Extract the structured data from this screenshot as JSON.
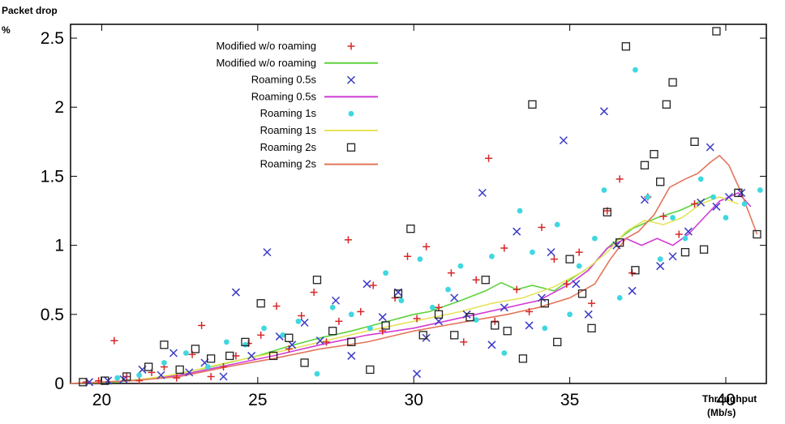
{
  "chart_data": {
    "type": "scatter",
    "title": "",
    "ylabel_line1": "Packet drop",
    "ylabel_line2": "%",
    "xlabel_line1": "Throughput",
    "xlabel_line2": "(Mb/s)",
    "xlim": [
      19,
      41.3
    ],
    "ylim": [
      0,
      2.6
    ],
    "x_ticks": [
      20,
      25,
      30,
      35,
      40
    ],
    "y_ticks": [
      0,
      0.5,
      1,
      1.5,
      2,
      2.5
    ],
    "x_tick_labels": [
      "20",
      "25",
      "30",
      "35",
      "40"
    ],
    "y_tick_labels": [
      "0",
      "0.5",
      "1",
      "1.5",
      "2",
      "2.5"
    ],
    "grid": false,
    "legend_position": "top-left",
    "series": [
      {
        "name": "Modified w/o roaming",
        "kind": "points",
        "marker": "plus",
        "color": "#d62728",
        "points": [
          [
            19.5,
            0.01
          ],
          [
            19.9,
            0.02
          ],
          [
            20.4,
            0.31
          ],
          [
            20.8,
            0.05
          ],
          [
            21.2,
            0.02
          ],
          [
            21.6,
            0.08
          ],
          [
            22.0,
            0.12
          ],
          [
            22.4,
            0.04
          ],
          [
            22.9,
            0.21
          ],
          [
            23.2,
            0.42
          ],
          [
            23.5,
            0.05
          ],
          [
            23.9,
            0.12
          ],
          [
            24.3,
            0.2
          ],
          [
            24.7,
            0.29
          ],
          [
            25.1,
            0.35
          ],
          [
            25.6,
            0.56
          ],
          [
            26.0,
            0.25
          ],
          [
            26.4,
            0.49
          ],
          [
            26.8,
            0.66
          ],
          [
            27.2,
            0.3
          ],
          [
            27.6,
            0.45
          ],
          [
            27.9,
            1.04
          ],
          [
            28.3,
            0.52
          ],
          [
            28.7,
            0.71
          ],
          [
            29.0,
            0.38
          ],
          [
            29.4,
            0.62
          ],
          [
            29.8,
            0.92
          ],
          [
            30.1,
            0.47
          ],
          [
            30.4,
            0.99
          ],
          [
            30.8,
            0.55
          ],
          [
            31.2,
            0.8
          ],
          [
            31.6,
            0.3
          ],
          [
            32.0,
            0.75
          ],
          [
            32.4,
            1.63
          ],
          [
            32.6,
            0.45
          ],
          [
            32.9,
            0.98
          ],
          [
            33.3,
            0.68
          ],
          [
            33.7,
            0.52
          ],
          [
            34.1,
            1.13
          ],
          [
            34.5,
            0.9
          ],
          [
            34.9,
            0.72
          ],
          [
            35.3,
            0.95
          ],
          [
            35.7,
            0.58
          ],
          [
            36.2,
            1.25
          ],
          [
            36.6,
            1.48
          ],
          [
            37.0,
            0.8
          ],
          [
            37.5,
            1.35
          ],
          [
            38.0,
            1.21
          ],
          [
            38.5,
            1.08
          ],
          [
            39.0,
            1.3
          ]
        ]
      },
      {
        "name": "Modified w/o roaming",
        "kind": "line",
        "color": "#5ed33b",
        "points": [
          [
            19.0,
            0.0
          ],
          [
            20.5,
            0.01
          ],
          [
            22.0,
            0.05
          ],
          [
            23.5,
            0.12
          ],
          [
            25.0,
            0.2
          ],
          [
            26.0,
            0.27
          ],
          [
            27.0,
            0.33
          ],
          [
            28.0,
            0.38
          ],
          [
            29.0,
            0.44
          ],
          [
            30.0,
            0.5
          ],
          [
            30.5,
            0.52
          ],
          [
            31.5,
            0.6
          ],
          [
            32.3,
            0.67
          ],
          [
            32.8,
            0.73
          ],
          [
            33.3,
            0.68
          ],
          [
            33.8,
            0.71
          ],
          [
            34.5,
            0.67
          ],
          [
            35.2,
            0.78
          ],
          [
            35.7,
            0.85
          ],
          [
            36.3,
            1.0
          ],
          [
            37.0,
            1.12
          ],
          [
            37.8,
            1.2
          ],
          [
            38.5,
            1.25
          ],
          [
            39.2,
            1.32
          ],
          [
            39.6,
            1.36
          ]
        ]
      },
      {
        "name": "Roaming 0.5s",
        "kind": "points",
        "marker": "cross",
        "color": "#3b3bc8",
        "points": [
          [
            19.6,
            0.01
          ],
          [
            20.2,
            0.02
          ],
          [
            20.7,
            0.03
          ],
          [
            21.3,
            0.1
          ],
          [
            21.9,
            0.06
          ],
          [
            22.3,
            0.22
          ],
          [
            22.8,
            0.08
          ],
          [
            23.3,
            0.15
          ],
          [
            23.9,
            0.05
          ],
          [
            24.3,
            0.66
          ],
          [
            24.8,
            0.2
          ],
          [
            25.3,
            0.95
          ],
          [
            25.7,
            0.34
          ],
          [
            26.1,
            0.28
          ],
          [
            26.5,
            0.44
          ],
          [
            27.0,
            0.31
          ],
          [
            27.5,
            0.6
          ],
          [
            28.0,
            0.2
          ],
          [
            28.5,
            0.72
          ],
          [
            29.0,
            0.48
          ],
          [
            29.5,
            0.66
          ],
          [
            30.1,
            0.07
          ],
          [
            30.4,
            0.33
          ],
          [
            30.8,
            0.45
          ],
          [
            31.3,
            0.62
          ],
          [
            31.7,
            0.5
          ],
          [
            32.2,
            1.38
          ],
          [
            32.5,
            0.28
          ],
          [
            32.9,
            0.55
          ],
          [
            33.3,
            1.1
          ],
          [
            33.7,
            0.42
          ],
          [
            34.1,
            0.62
          ],
          [
            34.4,
            0.95
          ],
          [
            34.8,
            1.76
          ],
          [
            35.2,
            0.72
          ],
          [
            35.6,
            0.5
          ],
          [
            36.1,
            1.97
          ],
          [
            36.5,
            1.0
          ],
          [
            37.0,
            0.67
          ],
          [
            37.4,
            1.33
          ],
          [
            37.9,
            0.85
          ],
          [
            38.3,
            0.92
          ],
          [
            38.8,
            1.1
          ],
          [
            39.2,
            1.31
          ],
          [
            39.5,
            1.71
          ],
          [
            39.7,
            1.28
          ],
          [
            40.1,
            1.35
          ],
          [
            40.5,
            1.38
          ]
        ]
      },
      {
        "name": "Roaming 0.5s",
        "kind": "line",
        "color": "#d23bd6",
        "points": [
          [
            19.0,
            0.0
          ],
          [
            21.0,
            0.02
          ],
          [
            22.5,
            0.06
          ],
          [
            24.0,
            0.13
          ],
          [
            25.5,
            0.2
          ],
          [
            27.0,
            0.28
          ],
          [
            28.5,
            0.35
          ],
          [
            30.0,
            0.4
          ],
          [
            31.0,
            0.45
          ],
          [
            32.0,
            0.5
          ],
          [
            33.0,
            0.55
          ],
          [
            34.0,
            0.6
          ],
          [
            35.0,
            0.72
          ],
          [
            35.6,
            0.82
          ],
          [
            36.2,
            0.98
          ],
          [
            36.8,
            1.05
          ],
          [
            37.3,
            1.0
          ],
          [
            37.8,
            1.05
          ],
          [
            38.3,
            1.0
          ],
          [
            38.8,
            1.08
          ],
          [
            39.3,
            1.2
          ],
          [
            39.8,
            1.32
          ],
          [
            40.4,
            1.38
          ],
          [
            40.8,
            1.28
          ]
        ]
      },
      {
        "name": "Roaming 1s",
        "kind": "points",
        "marker": "star",
        "color": "#3fd7e0",
        "points": [
          [
            20.5,
            0.04
          ],
          [
            21.2,
            0.06
          ],
          [
            22.0,
            0.15
          ],
          [
            22.7,
            0.22
          ],
          [
            23.4,
            0.12
          ],
          [
            24.0,
            0.3
          ],
          [
            24.6,
            0.28
          ],
          [
            25.2,
            0.4
          ],
          [
            25.8,
            0.35
          ],
          [
            26.3,
            0.45
          ],
          [
            26.9,
            0.07
          ],
          [
            27.4,
            0.55
          ],
          [
            28.0,
            0.5
          ],
          [
            28.6,
            0.4
          ],
          [
            29.1,
            0.8
          ],
          [
            29.6,
            0.6
          ],
          [
            30.2,
            0.9
          ],
          [
            30.6,
            0.55
          ],
          [
            31.1,
            0.68
          ],
          [
            31.5,
            0.85
          ],
          [
            32.0,
            0.46
          ],
          [
            32.5,
            0.92
          ],
          [
            32.9,
            0.22
          ],
          [
            33.4,
            1.25
          ],
          [
            33.8,
            0.95
          ],
          [
            34.2,
            0.4
          ],
          [
            34.6,
            1.15
          ],
          [
            35.0,
            0.5
          ],
          [
            35.3,
            0.85
          ],
          [
            35.8,
            1.05
          ],
          [
            36.1,
            1.4
          ],
          [
            36.6,
            0.62
          ],
          [
            37.1,
            2.27
          ],
          [
            37.5,
            1.35
          ],
          [
            37.9,
            0.9
          ],
          [
            38.3,
            1.2
          ],
          [
            38.7,
            1.05
          ],
          [
            39.2,
            1.48
          ],
          [
            39.6,
            1.35
          ],
          [
            40.0,
            1.2
          ],
          [
            40.6,
            1.3
          ],
          [
            41.1,
            1.4
          ]
        ]
      },
      {
        "name": "Roaming 1s",
        "kind": "line",
        "color": "#e6e35a",
        "points": [
          [
            19.0,
            0.0
          ],
          [
            21.0,
            0.02
          ],
          [
            22.5,
            0.07
          ],
          [
            24.0,
            0.15
          ],
          [
            25.5,
            0.22
          ],
          [
            27.0,
            0.3
          ],
          [
            28.5,
            0.38
          ],
          [
            30.0,
            0.45
          ],
          [
            31.5,
            0.52
          ],
          [
            32.5,
            0.58
          ],
          [
            33.5,
            0.62
          ],
          [
            34.5,
            0.7
          ],
          [
            35.5,
            0.82
          ],
          [
            36.2,
            0.95
          ],
          [
            36.8,
            1.1
          ],
          [
            37.4,
            1.18
          ],
          [
            38.0,
            1.15
          ],
          [
            38.6,
            1.2
          ],
          [
            39.2,
            1.3
          ],
          [
            39.8,
            1.35
          ],
          [
            40.4,
            1.3
          ]
        ]
      },
      {
        "name": "Roaming 2s",
        "kind": "points",
        "marker": "square",
        "color": "#222222",
        "points": [
          [
            19.4,
            0.01
          ],
          [
            20.1,
            0.02
          ],
          [
            20.8,
            0.05
          ],
          [
            21.5,
            0.12
          ],
          [
            22.0,
            0.28
          ],
          [
            22.5,
            0.1
          ],
          [
            23.0,
            0.25
          ],
          [
            23.5,
            0.18
          ],
          [
            24.1,
            0.2
          ],
          [
            24.6,
            0.3
          ],
          [
            25.1,
            0.58
          ],
          [
            25.5,
            0.2
          ],
          [
            26.0,
            0.33
          ],
          [
            26.5,
            0.15
          ],
          [
            26.9,
            0.75
          ],
          [
            27.4,
            0.38
          ],
          [
            28.0,
            0.3
          ],
          [
            28.6,
            0.1
          ],
          [
            29.1,
            0.42
          ],
          [
            29.5,
            0.65
          ],
          [
            29.9,
            1.12
          ],
          [
            30.3,
            0.35
          ],
          [
            30.8,
            0.5
          ],
          [
            31.3,
            0.35
          ],
          [
            31.8,
            0.48
          ],
          [
            32.3,
            0.75
          ],
          [
            32.6,
            0.42
          ],
          [
            33.0,
            0.38
          ],
          [
            33.5,
            0.18
          ],
          [
            33.8,
            2.02
          ],
          [
            34.2,
            0.58
          ],
          [
            34.6,
            0.3
          ],
          [
            35.0,
            0.9
          ],
          [
            35.4,
            0.65
          ],
          [
            35.7,
            0.4
          ],
          [
            36.2,
            1.24
          ],
          [
            36.6,
            1.02
          ],
          [
            36.8,
            2.44
          ],
          [
            37.1,
            0.82
          ],
          [
            37.4,
            1.58
          ],
          [
            37.7,
            1.66
          ],
          [
            37.9,
            1.46
          ],
          [
            38.1,
            2.02
          ],
          [
            38.3,
            2.18
          ],
          [
            38.7,
            0.95
          ],
          [
            39.0,
            1.75
          ],
          [
            39.3,
            0.97
          ],
          [
            39.7,
            2.55
          ],
          [
            40.4,
            1.38
          ],
          [
            41.0,
            1.08
          ]
        ]
      },
      {
        "name": "Roaming 2s",
        "kind": "line",
        "color": "#e3745a",
        "points": [
          [
            19.0,
            0.0
          ],
          [
            21.0,
            0.02
          ],
          [
            22.5,
            0.05
          ],
          [
            24.0,
            0.12
          ],
          [
            25.5,
            0.18
          ],
          [
            27.0,
            0.25
          ],
          [
            28.5,
            0.3
          ],
          [
            30.0,
            0.38
          ],
          [
            31.0,
            0.42
          ],
          [
            32.0,
            0.46
          ],
          [
            33.0,
            0.5
          ],
          [
            34.0,
            0.55
          ],
          [
            35.0,
            0.62
          ],
          [
            35.8,
            0.72
          ],
          [
            36.3,
            0.9
          ],
          [
            36.8,
            1.05
          ],
          [
            37.2,
            1.1
          ],
          [
            37.7,
            1.22
          ],
          [
            38.2,
            1.42
          ],
          [
            38.7,
            1.48
          ],
          [
            39.1,
            1.52
          ],
          [
            39.5,
            1.6
          ],
          [
            39.8,
            1.65
          ],
          [
            40.1,
            1.58
          ],
          [
            40.5,
            1.38
          ],
          [
            40.8,
            1.2
          ],
          [
            41.0,
            1.08
          ]
        ]
      }
    ]
  }
}
